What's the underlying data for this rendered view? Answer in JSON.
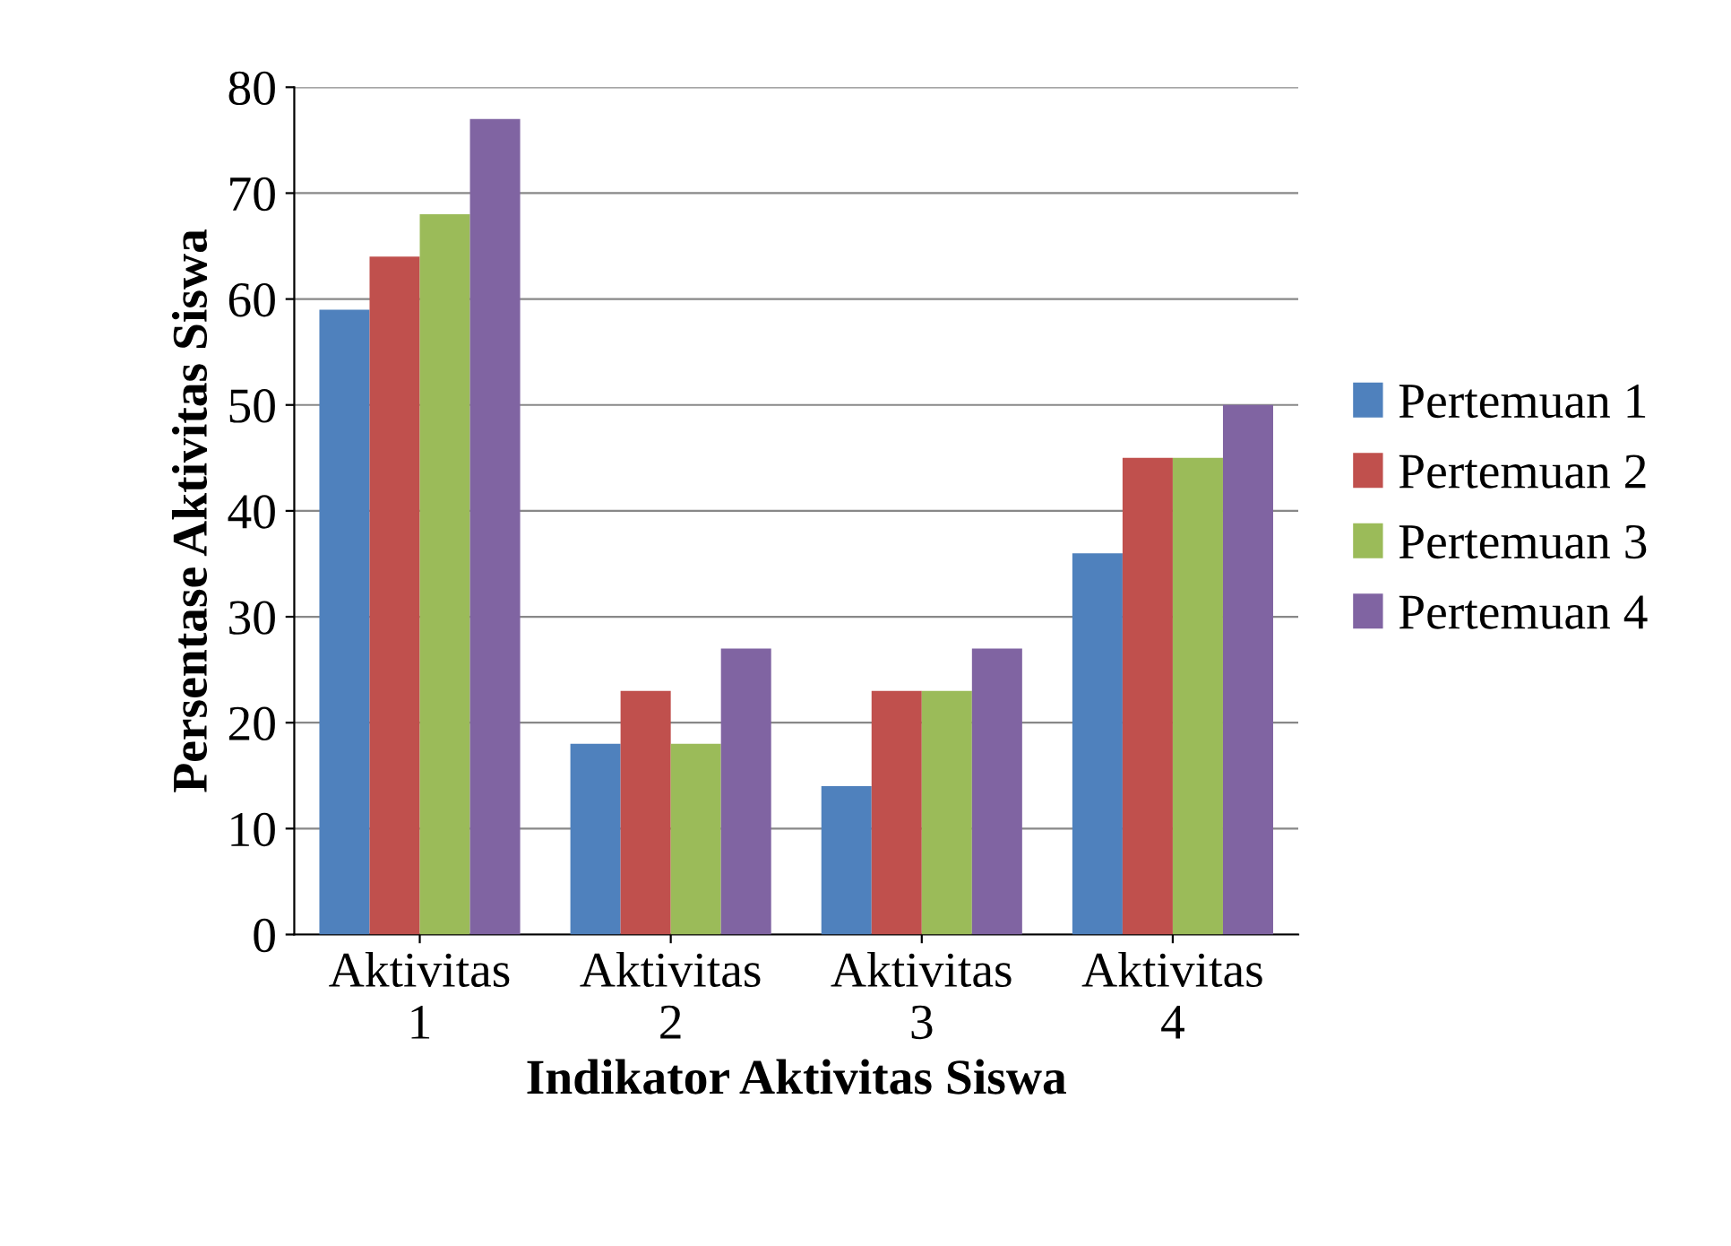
{
  "chart_data": {
    "type": "bar",
    "xlabel": "Indikator Aktivitas Siswa",
    "ylabel": "Persentase Aktivitas Siswa",
    "categories": [
      "Aktivitas\n1",
      "Aktivitas\n2",
      "Aktivitas\n3",
      "Aktivitas\n4"
    ],
    "series": [
      {
        "name": "Pertemuan 1",
        "color": "#4f81bd",
        "values": [
          59,
          18,
          14,
          36
        ]
      },
      {
        "name": "Pertemuan 2",
        "color": "#c0504d",
        "values": [
          64,
          23,
          23,
          45
        ]
      },
      {
        "name": "Pertemuan 3",
        "color": "#9bbb59",
        "values": [
          68,
          18,
          23,
          45
        ]
      },
      {
        "name": "Pertemuan 4",
        "color": "#8064a2",
        "values": [
          77,
          27,
          27,
          50
        ]
      }
    ],
    "ylim": [
      0,
      80
    ],
    "yticks": [
      0,
      10,
      20,
      30,
      40,
      50,
      60,
      70,
      80
    ],
    "grid": "y",
    "legend": "right"
  }
}
